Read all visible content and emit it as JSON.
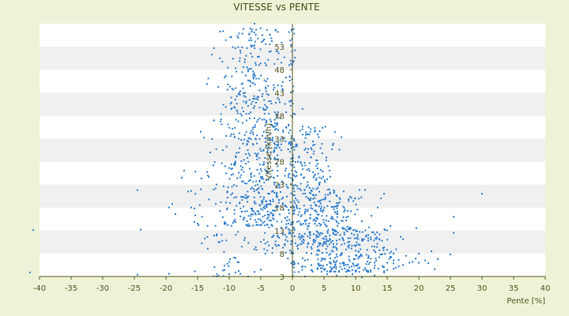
{
  "chart_data": {
    "type": "scatter",
    "title": "VITESSE vs PENTE",
    "xlabel": "Pente [%]",
    "ylabel": "Vitesse [km/h]",
    "xlim": [
      -40,
      40
    ],
    "ylim": [
      3,
      58
    ],
    "x_ticks": [
      "-40",
      "-35",
      "-30",
      "-25",
      "-20",
      "-15",
      "-10",
      "-5",
      "0",
      "5",
      "10",
      "15",
      "20",
      "25",
      "30",
      "35",
      "40"
    ],
    "y_ticks": [
      "3",
      "8",
      "13",
      "18",
      "23",
      "28",
      "33",
      "38",
      "43",
      "48",
      "53"
    ],
    "grid": "alternating horizontal bands",
    "legend": "none",
    "colors": {
      "points": "#2f7fcf",
      "band_light": "#ffffff",
      "band_dark": "#f0f0f0",
      "axis": "#5a5a1e",
      "background": "#eef2d6"
    },
    "clusters": [
      {
        "x_mean": -6.0,
        "x_sd": 2.6,
        "y_min": 14,
        "y_max": 57,
        "n": 520
      },
      {
        "x_mean": -2.5,
        "x_sd": 1.8,
        "y_min": 8,
        "y_max": 40,
        "n": 160
      },
      {
        "x_mean": 2.5,
        "x_sd": 1.8,
        "y_min": 10,
        "y_max": 36,
        "n": 220
      },
      {
        "x_mean": 6.0,
        "x_sd": 2.8,
        "y_min": 4,
        "y_max": 22,
        "n": 280
      },
      {
        "x_mean": 11.0,
        "x_sd": 3.5,
        "y_min": 4,
        "y_max": 14,
        "n": 160
      },
      {
        "x_mean": -10.5,
        "x_sd": 3.0,
        "y_min": 3,
        "y_max": 30,
        "n": 70
      },
      {
        "x_mean": 0.0,
        "x_sd": 0.3,
        "y_min": 3,
        "y_max": 57,
        "n": 90
      }
    ],
    "points": [
      [
        -41.5,
        3.9
      ],
      [
        -41.0,
        13.1
      ],
      [
        -24.5,
        3.4
      ],
      [
        -24.5,
        21.8
      ],
      [
        -24.0,
        13.2
      ],
      [
        -20.0,
        2.1
      ],
      [
        -19.5,
        3.6
      ],
      [
        -19.0,
        18.8
      ],
      [
        -19.5,
        18.0
      ],
      [
        -18.5,
        16.6
      ],
      [
        -17.5,
        24.5
      ],
      [
        -16.5,
        21.5
      ],
      [
        -16.0,
        18.0
      ],
      [
        -15.5,
        17.8
      ],
      [
        -15.5,
        14.9
      ],
      [
        -15.0,
        14.5
      ],
      [
        -14.5,
        34.5
      ],
      [
        -14.0,
        33.2
      ],
      [
        -13.5,
        44.9
      ],
      [
        -13.0,
        30.0
      ],
      [
        -12.5,
        27.2
      ],
      [
        -12.0,
        23.0
      ],
      [
        -12.0,
        11.9
      ],
      [
        -11.5,
        10.5
      ],
      [
        -11.0,
        4.3
      ],
      [
        -11.0,
        30.5
      ],
      [
        -11.0,
        15.9
      ],
      [
        -10.5,
        19.1
      ],
      [
        -10.0,
        3.5
      ],
      [
        -9.5,
        1.9
      ],
      [
        -9.0,
        3.9
      ],
      [
        -8.5,
        6.1
      ],
      [
        -8.0,
        9.5
      ],
      [
        -7.5,
        11.4
      ],
      [
        -7.0,
        14.0
      ],
      [
        -6.5,
        16.6
      ],
      [
        -6.0,
        19.3
      ],
      [
        -5.5,
        22.0
      ],
      [
        -5.0,
        24.7
      ],
      [
        -4.5,
        27.4
      ],
      [
        -4.0,
        30.1
      ],
      [
        -3.5,
        32.8
      ],
      [
        -3.0,
        35.5
      ],
      [
        -2.5,
        38.2
      ],
      [
        -2.0,
        40.9
      ],
      [
        -1.5,
        43.6
      ],
      [
        -1.0,
        46.3
      ],
      [
        -0.5,
        49.0
      ],
      [
        -12.0,
        3.0
      ],
      [
        -9.0,
        28.0
      ],
      [
        -8.5,
        33.0
      ],
      [
        -8.0,
        38.0
      ],
      [
        -7.5,
        43.0
      ],
      [
        -7.0,
        48.0
      ],
      [
        -6.5,
        53.0
      ],
      [
        -6.0,
        58.0
      ],
      [
        -10.5,
        2.5
      ],
      [
        -8.5,
        4.2
      ],
      [
        -10.0,
        6.2
      ],
      [
        -9.0,
        7.0
      ],
      [
        -7.0,
        3.0
      ],
      [
        -6.0,
        4.0
      ],
      [
        -5.0,
        4.5
      ],
      [
        -4.0,
        2.2
      ],
      [
        1.0,
        4.0
      ],
      [
        2.0,
        3.0
      ],
      [
        5.5,
        3.5
      ],
      [
        7.0,
        3.2
      ],
      [
        8.5,
        3.0
      ],
      [
        9.5,
        3.5
      ],
      [
        11.0,
        2.8
      ],
      [
        13.0,
        3.2
      ],
      [
        14.5,
        3.9
      ],
      [
        15.0,
        6.0
      ],
      [
        15.5,
        14.0
      ],
      [
        16.0,
        8.0
      ],
      [
        17.5,
        5.5
      ],
      [
        18.0,
        7.5
      ],
      [
        19.0,
        6.2
      ],
      [
        20.0,
        6.0
      ],
      [
        21.0,
        6.5
      ],
      [
        22.0,
        8.5
      ],
      [
        22.5,
        4.6
      ],
      [
        23.0,
        6.8
      ],
      [
        25.0,
        7.8
      ],
      [
        25.5,
        12.5
      ],
      [
        25.5,
        16.0
      ],
      [
        30.0,
        21.0
      ],
      [
        20.0,
        8.0
      ],
      [
        14.0,
        20.0
      ],
      [
        14.5,
        21.0
      ],
      [
        13.5,
        18.0
      ],
      [
        12.5,
        16.2
      ],
      [
        11.0,
        15.0
      ],
      [
        10.5,
        10.0
      ],
      [
        12.0,
        12.0
      ],
      [
        13.0,
        9.5
      ],
      [
        14.0,
        7.8
      ],
      [
        16.0,
        6.5
      ],
      [
        18.5,
        6.0
      ],
      [
        19.5,
        6.9
      ],
      [
        21.5,
        5.9
      ],
      [
        12.0,
        4.0
      ],
      [
        9.0,
        5.0
      ],
      [
        6.0,
        4.2
      ],
      [
        4.0,
        4.8
      ],
      [
        3.0,
        5.5
      ],
      [
        2.0,
        6.5
      ],
      [
        3.0,
        8.0
      ],
      [
        4.0,
        9.5
      ],
      [
        5.0,
        10.5
      ],
      [
        6.0,
        11.0
      ],
      [
        7.0,
        10.8
      ],
      [
        8.0,
        11.2
      ],
      [
        9.0,
        9.8
      ],
      [
        10.0,
        8.6
      ],
      [
        11.0,
        7.5
      ],
      [
        12.0,
        7.0
      ],
      [
        13.0,
        6.0
      ]
    ]
  }
}
